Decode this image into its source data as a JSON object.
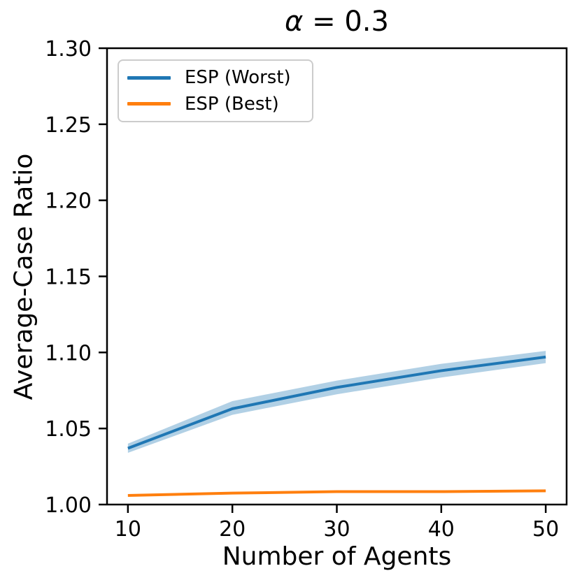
{
  "chart_data": {
    "type": "line",
    "title": "α = 0.3",
    "title_symbol": "α",
    "title_rest": " = 0.3",
    "xlabel": "Number of Agents",
    "ylabel": "Average-Case Ratio",
    "grid": false,
    "legend_position": "upper left",
    "axis_color": "#000000",
    "x": [
      10,
      20,
      30,
      40,
      50
    ],
    "xlim": [
      8,
      52
    ],
    "ylim": [
      1.0,
      1.3
    ],
    "xticks": {
      "values": [
        10,
        20,
        30,
        40,
        50
      ],
      "labels": [
        "10",
        "20",
        "30",
        "40",
        "50"
      ]
    },
    "yticks": {
      "values": [
        1.0,
        1.05,
        1.1,
        1.15,
        1.2,
        1.25,
        1.3
      ],
      "labels": [
        "1.00",
        "1.05",
        "1.10",
        "1.15",
        "1.20",
        "1.25",
        "1.30"
      ]
    },
    "series": [
      {
        "name": "ESP (Worst)",
        "color": "#1f77b4",
        "values": [
          1.037,
          1.063,
          1.077,
          1.088,
          1.097
        ],
        "band_lower": [
          1.034,
          1.059,
          1.0725,
          1.0835,
          1.093
        ],
        "band_upper": [
          1.04,
          1.068,
          1.0815,
          1.0925,
          1.101
        ],
        "band_alpha": 0.35
      },
      {
        "name": "ESP (Best)",
        "color": "#ff7f0e",
        "values": [
          1.006,
          1.0075,
          1.0085,
          1.0085,
          1.009
        ],
        "band_lower": [
          1.0052,
          1.0068,
          1.0078,
          1.0078,
          1.0082
        ],
        "band_upper": [
          1.0068,
          1.0082,
          1.0092,
          1.0092,
          1.0098
        ],
        "band_alpha": 0.35
      }
    ]
  }
}
